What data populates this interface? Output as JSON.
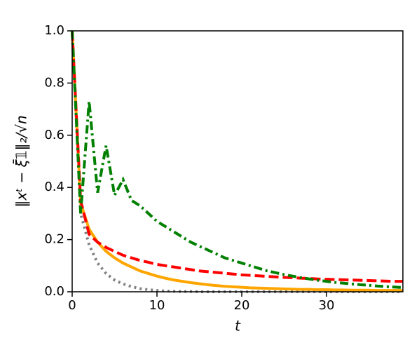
{
  "chart_data": {
    "type": "line",
    "xlabel": "t",
    "ylabel": "‖xᵗ − ξ̄𝟙‖₂/√n",
    "x": [
      0,
      1,
      2,
      3,
      4,
      5,
      6,
      7,
      8,
      9,
      10,
      11,
      12,
      13,
      14,
      15,
      16,
      17,
      18,
      19,
      20,
      21,
      22,
      23,
      24,
      25,
      26,
      27,
      28,
      29,
      30,
      31,
      32,
      33,
      34,
      35,
      36,
      37,
      38,
      39
    ],
    "series": [
      {
        "color": "#808080",
        "linestyle": "dotted",
        "values": [
          1.0,
          0.3,
          0.18,
          0.11,
          0.07,
          0.045,
          0.03,
          0.02,
          0.012,
          0.008,
          0.005,
          0.003,
          0.002,
          0.001,
          0.001,
          0,
          0,
          0,
          0,
          0,
          0,
          0,
          0,
          0,
          0,
          0,
          0,
          0,
          0,
          0,
          0,
          0,
          0,
          0,
          0,
          0,
          0,
          0,
          0,
          0
        ]
      },
      {
        "color": "#ffa500",
        "linestyle": "solid",
        "values": [
          1.0,
          0.34,
          0.24,
          0.19,
          0.155,
          0.13,
          0.11,
          0.095,
          0.08,
          0.07,
          0.06,
          0.052,
          0.045,
          0.04,
          0.035,
          0.031,
          0.027,
          0.024,
          0.021,
          0.019,
          0.017,
          0.015,
          0.014,
          0.013,
          0.012,
          0.011,
          0.01,
          0.009,
          0.009,
          0.008,
          0.008,
          0.007,
          0.007,
          0.006,
          0.006,
          0.006,
          0.005,
          0.005,
          0.005,
          0.005
        ]
      },
      {
        "color": "#ff0000",
        "linestyle": "dashed",
        "values": [
          1.0,
          0.35,
          0.22,
          0.19,
          0.17,
          0.155,
          0.14,
          0.13,
          0.12,
          0.113,
          0.105,
          0.1,
          0.095,
          0.09,
          0.085,
          0.08,
          0.077,
          0.074,
          0.071,
          0.068,
          0.065,
          0.063,
          0.061,
          0.059,
          0.057,
          0.055,
          0.054,
          0.052,
          0.051,
          0.049,
          0.048,
          0.047,
          0.046,
          0.045,
          0.044,
          0.043,
          0.042,
          0.041,
          0.04,
          0.04
        ]
      },
      {
        "color": "#008000",
        "linestyle": "dashdot",
        "values": [
          1.0,
          0.3,
          0.73,
          0.38,
          0.56,
          0.37,
          0.43,
          0.35,
          0.33,
          0.3,
          0.27,
          0.25,
          0.23,
          0.21,
          0.19,
          0.175,
          0.16,
          0.145,
          0.13,
          0.12,
          0.11,
          0.1,
          0.09,
          0.08,
          0.073,
          0.066,
          0.06,
          0.054,
          0.049,
          0.044,
          0.04,
          0.036,
          0.033,
          0.03,
          0.027,
          0.025,
          0.022,
          0.02,
          0.018,
          0.016
        ]
      }
    ],
    "xlim": [
      0,
      39
    ],
    "xticks": [
      0,
      10,
      20,
      30
    ],
    "ylim": [
      0,
      1.0
    ],
    "yticks": [
      {
        "value": 0,
        "label": "0.0"
      },
      {
        "value": 0.2,
        "label": "0.2"
      },
      {
        "value": 0.4,
        "label": "0.4"
      },
      {
        "value": 0.6,
        "label": "0.6"
      },
      {
        "value": 0.8,
        "label": "0.8"
      },
      {
        "value": 1.0,
        "label": "1.0"
      }
    ],
    "grid": false
  }
}
